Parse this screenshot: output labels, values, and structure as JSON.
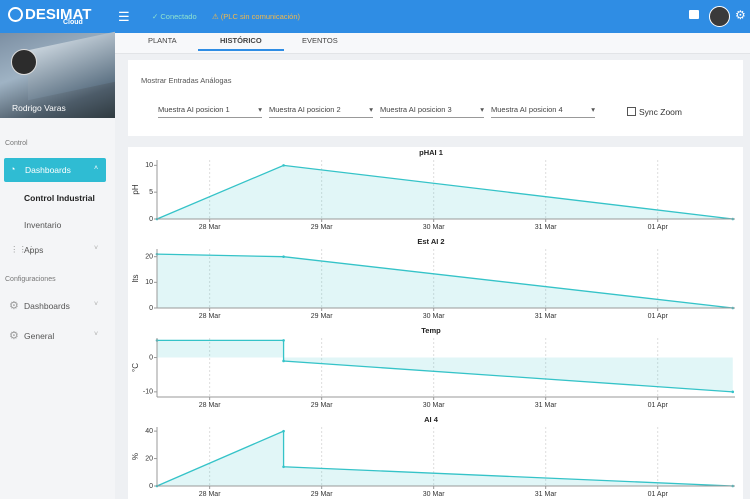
{
  "header": {
    "brand": "DESIMAT",
    "brand_sub": "Cloud",
    "status_ok": "✓ Conectado",
    "status_warn": "⚠ (PLC sin comunicación)"
  },
  "sidebar": {
    "user": "Rodrigo Varas",
    "sections": [
      {
        "label": "Control",
        "items": [
          "Dashboards",
          "Control Industrial",
          "Inventario",
          "Apps"
        ]
      },
      {
        "label": "Configuraciones",
        "items": [
          "Dashboards",
          "General"
        ]
      }
    ]
  },
  "tabs": [
    "PLANTA",
    "HISTÓRICO",
    "EVENTOS"
  ],
  "active_tab": 1,
  "filter": {
    "title": "Mostrar Entradas Análogas",
    "selects": [
      "Muestra AI posicion 1",
      "Muestra AI posicion 2",
      "Muestra AI posicion 3",
      "Muestra AI posicion 4"
    ],
    "sync_zoom": "Sync Zoom"
  },
  "chart_data": [
    {
      "type": "area",
      "title": "pHAI 1",
      "y_label": "pH",
      "x": [
        27.53,
        28.66,
        32.67
      ],
      "values": [
        0,
        10,
        0
      ],
      "color": "#35c3c8",
      "xlim": [
        27.53,
        32.69
      ],
      "xticks": [
        {
          "value": 28,
          "label": "28 Mar"
        },
        {
          "value": 29,
          "label": "29 Mar"
        },
        {
          "value": 30,
          "label": "30 Mar"
        },
        {
          "value": 31,
          "label": "31 Mar"
        },
        {
          "value": 32,
          "label": "01 Apr"
        }
      ],
      "ylim": [
        0,
        11
      ],
      "yticks": [
        0,
        5,
        10
      ],
      "grid": true
    },
    {
      "type": "area",
      "title": "Est AI 2",
      "y_label": "lts",
      "x": [
        27.53,
        28.66,
        32.67
      ],
      "values": [
        21,
        20,
        0
      ],
      "color": "#35c3c8",
      "xlim": [
        27.53,
        32.69
      ],
      "xticks": [
        {
          "value": 28,
          "label": "28 Mar"
        },
        {
          "value": 29,
          "label": "29 Mar"
        },
        {
          "value": 30,
          "label": "30 Mar"
        },
        {
          "value": 31,
          "label": "31 Mar"
        },
        {
          "value": 32,
          "label": "01 Apr"
        }
      ],
      "ylim": [
        0,
        23
      ],
      "yticks": [
        0,
        10,
        20
      ],
      "grid": true
    },
    {
      "type": "area",
      "title": "Temp",
      "y_label": "°C",
      "x": [
        27.53,
        28.66,
        28.66,
        32.67
      ],
      "values": [
        5,
        5,
        -1,
        -10
      ],
      "color": "#35c3c8",
      "xlim": [
        27.53,
        32.69
      ],
      "xticks": [
        {
          "value": 28,
          "label": "28 Mar"
        },
        {
          "value": 29,
          "label": "29 Mar"
        },
        {
          "value": 30,
          "label": "30 Mar"
        },
        {
          "value": 31,
          "label": "31 Mar"
        },
        {
          "value": 32,
          "label": "01 Apr"
        }
      ],
      "ylim": [
        -11.5,
        5.7
      ],
      "yticks": [
        -10,
        0
      ],
      "grid": true
    },
    {
      "type": "area",
      "title": "AI 4",
      "y_label": "%",
      "x": [
        27.53,
        28.66,
        28.66,
        32.67
      ],
      "values": [
        0,
        40,
        14,
        0
      ],
      "color": "#35c3c8",
      "xlim": [
        27.53,
        32.69
      ],
      "xticks": [
        {
          "value": 28,
          "label": "28 Mar"
        },
        {
          "value": 29,
          "label": "29 Mar"
        },
        {
          "value": 30,
          "label": "30 Mar"
        },
        {
          "value": 31,
          "label": "31 Mar"
        },
        {
          "value": 32,
          "label": "01 Apr"
        }
      ],
      "ylim": [
        0,
        43
      ],
      "yticks": [
        0,
        20,
        40
      ],
      "grid": true
    }
  ]
}
